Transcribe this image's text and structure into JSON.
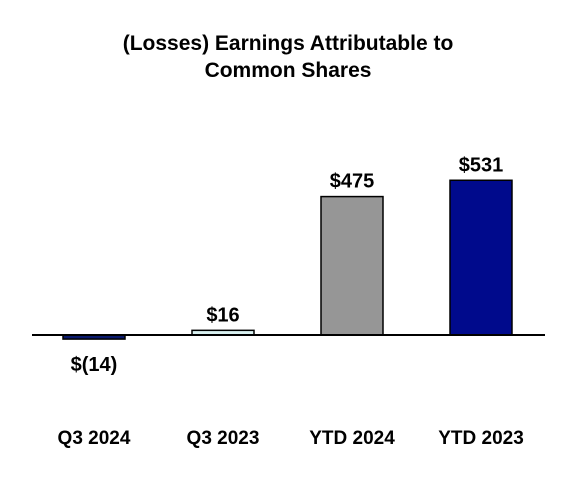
{
  "chart_data": {
    "type": "bar",
    "title_lines": [
      "(Losses) Earnings Attributable to",
      "Common Shares"
    ],
    "categories": [
      "Q3 2024",
      "Q3 2023",
      "YTD 2024",
      "YTD 2023"
    ],
    "values": [
      -14,
      16,
      475,
      531
    ],
    "value_labels": [
      "$(14)",
      "$16",
      "$475",
      "$531"
    ],
    "bar_colors": [
      "#0a1a6e",
      "#d8f0f0",
      "#969696",
      "#000a8c"
    ],
    "ylim": [
      -14,
      531
    ],
    "grid": false,
    "legend": "none"
  }
}
